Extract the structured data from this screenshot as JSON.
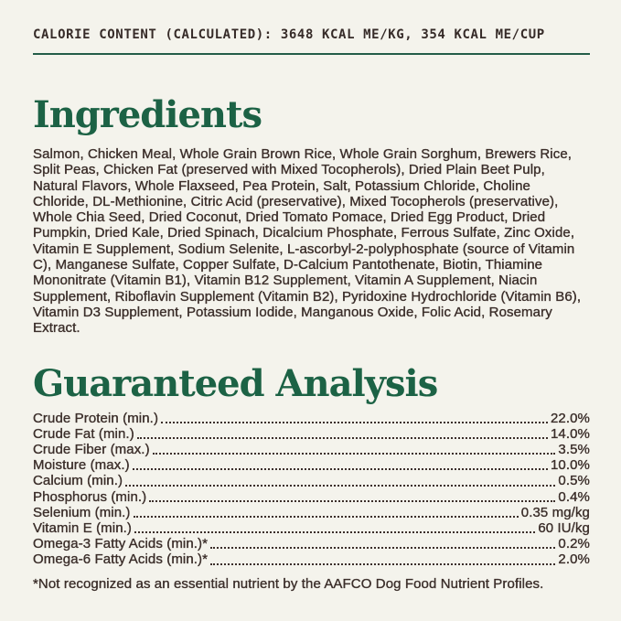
{
  "page": {
    "background_color": "#f4f3ec",
    "text_color": "#3b2e2a",
    "accent_green": "#1c6245",
    "rule_color": "#235c48"
  },
  "calorie_banner": {
    "text": "CALORIE CONTENT (CALCULATED): 3648 KCAL ME/KG, 354 KCAL ME/CUP"
  },
  "ingredients": {
    "title": "Ingredients",
    "body": "Salmon, Chicken Meal, Whole Grain Brown Rice, Whole Grain Sorghum, Brewers Rice, Split Peas, Chicken Fat (preserved with Mixed Tocopherols), Dried Plain Beet Pulp, Natural Flavors, Whole Flaxseed, Pea Protein, Salt, Potassium Chloride, Choline Chloride, DL-Methionine, Citric Acid (preservative), Mixed Tocopherols (preservative), Whole Chia Seed, Dried Coconut, Dried Tomato Pomace, Dried Egg Product, Dried Pumpkin, Dried Kale, Dried Spinach, Dicalcium Phosphate, Ferrous Sulfate, Zinc Oxide, Vitamin E Supplement, Sodium Selenite, L-ascorbyl-2-polyphosphate (source of Vitamin C), Manganese Sulfate, Copper Sulfate, D-Calcium Pantothenate, Biotin, Thiamine Mononitrate (Vitamin B1), Vitamin B12 Supplement, Vitamin A Supplement, Niacin Supplement, Riboflavin Supplement (Vitamin B2), Pyridoxine Hydrochloride (Vitamin B6), Vitamin D3 Supplement, Potassium Iodide, Manganous Oxide, Folic Acid, Rosemary Extract."
  },
  "guaranteed_analysis": {
    "title": "Guaranteed Analysis",
    "rows": [
      {
        "label": "Crude Protein (min.)",
        "value": "22.0%"
      },
      {
        "label": "Crude Fat (min.)",
        "value": "14.0%"
      },
      {
        "label": "Crude Fiber (max.)",
        "value": "3.5%"
      },
      {
        "label": "Moisture (max.)",
        "value": "10.0%"
      },
      {
        "label": "Calcium (min.)",
        "value": "0.5%"
      },
      {
        "label": "Phosphorus (min.)",
        "value": "0.4%"
      },
      {
        "label": "Selenium (min.)",
        "value": "0.35 mg/kg"
      },
      {
        "label": "Vitamin E (min.)",
        "value": "60 IU/kg"
      },
      {
        "label": "Omega-3 Fatty Acids (min.)*",
        "value": "0.2%"
      },
      {
        "label": "Omega-6 Fatty Acids (min.)*",
        "value": "2.0%"
      }
    ],
    "footnote": "*Not recognized as an essential nutrient by the AAFCO Dog Food Nutrient Profiles."
  }
}
